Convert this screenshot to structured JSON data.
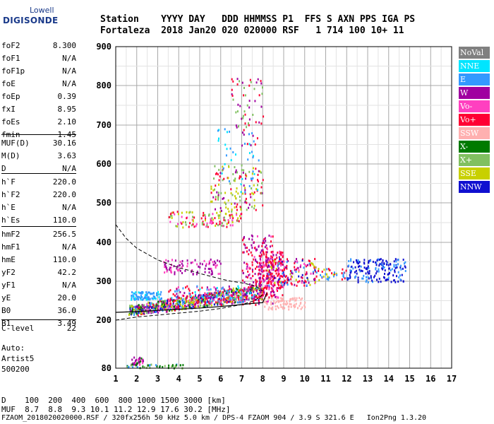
{
  "logo": {
    "line1": "Lowell",
    "line2": "DIGISONDE"
  },
  "header": {
    "row1": "Station    YYYY DAY   DDD HHMMSS P1  FFS S AXN PPS IGA PS",
    "row2": "Fortaleza  2018 Jan20 020 020000 RSF   1 714 100 10+ 11"
  },
  "params": {
    "group1": [
      {
        "k": "foF2",
        "v": "8.300"
      },
      {
        "k": "foF1",
        "v": "N/A"
      },
      {
        "k": "foF1p",
        "v": "N/A"
      },
      {
        "k": "foE",
        "v": "N/A"
      },
      {
        "k": "foEp",
        "v": "0.39"
      },
      {
        "k": "fxI",
        "v": "8.95"
      },
      {
        "k": "foEs",
        "v": "2.10"
      },
      {
        "k": "fmin",
        "v": "1.45"
      }
    ],
    "group2": [
      {
        "k": "MUF(D)",
        "v": "30.16"
      },
      {
        "k": "M(D)",
        "v": "3.63"
      },
      {
        "k": "D",
        "v": "N/A"
      }
    ],
    "group3": [
      {
        "k": "h`F",
        "v": "220.0"
      },
      {
        "k": "h`F2",
        "v": "220.0"
      },
      {
        "k": "h`E",
        "v": "N/A"
      },
      {
        "k": "h`Es",
        "v": "110.0"
      }
    ],
    "group4": [
      {
        "k": "hmF2",
        "v": "256.5"
      },
      {
        "k": "hmF1",
        "v": "N/A"
      },
      {
        "k": "hmE",
        "v": "110.0"
      },
      {
        "k": "yF2",
        "v": "42.2"
      },
      {
        "k": "yF1",
        "v": "N/A"
      },
      {
        "k": "yE",
        "v": "20.0"
      },
      {
        "k": "B0",
        "v": "36.0"
      },
      {
        "k": "B1",
        "v": "3.49"
      }
    ],
    "group5": [
      {
        "k": "C-level",
        "v": "22"
      }
    ],
    "auto": [
      "Auto:",
      "Artist5",
      "500200"
    ]
  },
  "bottom": {
    "d_line": "D    100  200  400  600  800 1000 1500 3000 [km]",
    "muf_line": "MUF  8.7  8.8  9.3 10.1 11.2 12.9 17.6 30.2 [MHz]",
    "file_line": "FZAOM_2018020020000.RSF / 320fx256h 50 kHz 5.0 km / DPS-4 FZAOM 904 / 3.9 S 321.6 E   Ion2Png 1.3.20"
  },
  "legend": [
    {
      "label": "NoVal",
      "bg": "#808080",
      "fg": "#ffffff"
    },
    {
      "label": "NNE",
      "bg": "#00e5ff",
      "fg": "#ffffff"
    },
    {
      "label": "E",
      "bg": "#3399ff",
      "fg": "#ffffff"
    },
    {
      "label": "W",
      "bg": "#a000a0",
      "fg": "#ffffff"
    },
    {
      "label": "Vo-",
      "bg": "#ff40c0",
      "fg": "#ffffff"
    },
    {
      "label": "Vo+",
      "bg": "#ff0033",
      "fg": "#ffffff"
    },
    {
      "label": "SSW",
      "bg": "#ffb0b0",
      "fg": "#ffffff"
    },
    {
      "label": "X-",
      "bg": "#007a00",
      "fg": "#ffffff"
    },
    {
      "label": "X+",
      "bg": "#80c060",
      "fg": "#ffffff"
    },
    {
      "label": "SSE",
      "bg": "#c8d000",
      "fg": "#ffffff"
    },
    {
      "label": "NNW",
      "bg": "#1010d0",
      "fg": "#ffffff"
    }
  ],
  "chart_data": {
    "type": "scatter",
    "title": "",
    "xlabel": "",
    "ylabel": "",
    "x_ticks": [
      1,
      2,
      3,
      4,
      5,
      6,
      7,
      8,
      9,
      10,
      11,
      12,
      13,
      14,
      15,
      16,
      17
    ],
    "y_ticks": [
      80,
      200,
      300,
      400,
      500,
      600,
      700,
      800,
      900
    ],
    "xlim": [
      1,
      17
    ],
    "y_scale": "nonlinear",
    "grid": true,
    "traces": [
      {
        "name": "trace-fit-dashed",
        "style": "dashed",
        "x": [
          1.0,
          1.5,
          2.0,
          2.5,
          3.0,
          3.5,
          4.0,
          4.5,
          5.0,
          5.5,
          6.0,
          6.5,
          7.0,
          7.5,
          7.8,
          8.0
        ],
        "y": [
          445,
          410,
          385,
          370,
          355,
          345,
          335,
          328,
          320,
          313,
          306,
          300,
          296,
          290,
          283,
          275
        ]
      },
      {
        "name": "trace-fit-dashed-low",
        "style": "dashed",
        "x": [
          1.0,
          2.0,
          3.0,
          4.0,
          5.0,
          6.0,
          7.0,
          7.6,
          8.0
        ],
        "y": [
          200,
          208,
          213,
          218,
          223,
          230,
          240,
          250,
          265
        ]
      },
      {
        "name": "trace-fit-solid",
        "style": "solid",
        "x": [
          1.0,
          2.0,
          3.0,
          4.0,
          5.0,
          6.0,
          7.0,
          7.5,
          8.0,
          8.2
        ],
        "y": [
          220,
          222,
          225,
          228,
          231,
          235,
          240,
          243,
          245,
          270
        ]
      }
    ]
  }
}
